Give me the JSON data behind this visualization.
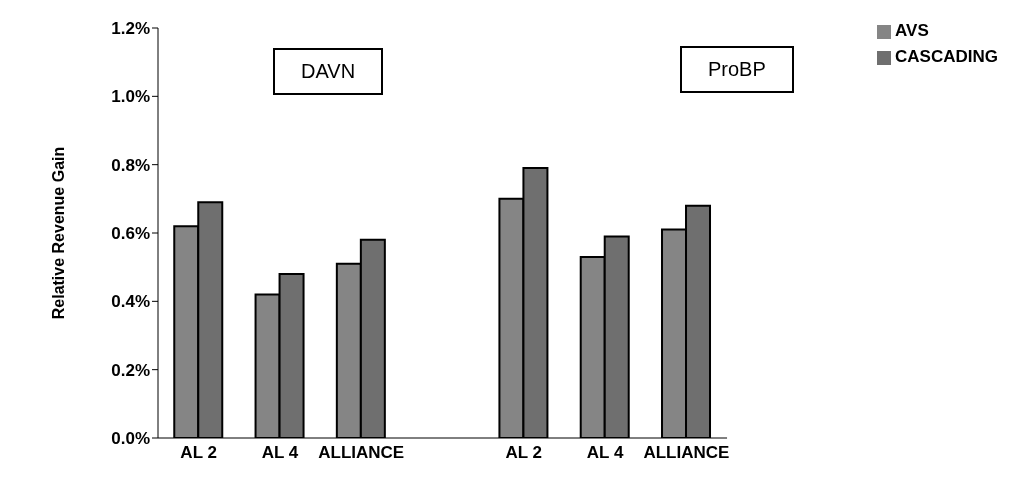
{
  "chart_data": {
    "type": "bar",
    "ylabel": "Relative Revenue Gain",
    "categories": [
      "AL 2",
      "AL 4",
      "ALLIANCE",
      null,
      "AL 2",
      "AL 4",
      "ALLIANCE"
    ],
    "series": [
      {
        "name": "AVS",
        "color": "#858585",
        "values": [
          0.62,
          0.42,
          0.51,
          null,
          0.7,
          0.53,
          0.61
        ]
      },
      {
        "name": "CASCADING",
        "color": "#6f6f6f",
        "values": [
          0.69,
          0.48,
          0.58,
          null,
          0.79,
          0.59,
          0.68
        ]
      }
    ],
    "ylim": [
      0,
      1.2
    ],
    "yticks": [
      {
        "value": 0,
        "label": "0.0%"
      },
      {
        "value": 0.2,
        "label": "0.2%"
      },
      {
        "value": 0.4,
        "label": "0.4%"
      },
      {
        "value": 0.6,
        "label": "0.6%"
      },
      {
        "value": 0.8,
        "label": "0.8%"
      },
      {
        "value": 1.0,
        "label": "1.0%"
      },
      {
        "value": 1.2,
        "label": "1.2%"
      }
    ],
    "annotations": [
      "DAVN",
      "ProBP"
    ],
    "legend": "top right",
    "grid": false
  }
}
